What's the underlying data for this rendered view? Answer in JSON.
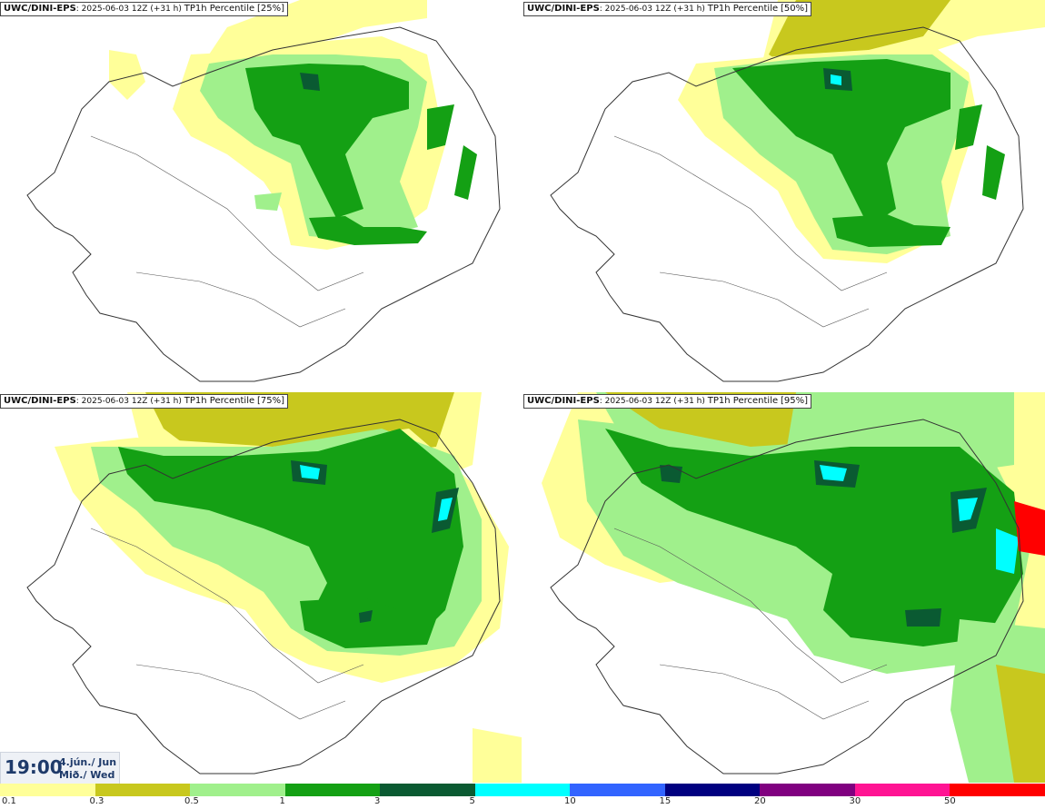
{
  "panels": [
    {
      "source": "UWC/DINI-EPS",
      "run": "2025-06-03 12Z (+31 h)",
      "variable": "TP1h Percentile",
      "percentile": "[25%]"
    },
    {
      "source": "UWC/DINI-EPS",
      "run": "2025-06-03 12Z (+31 h)",
      "variable": "TP1h Percentile",
      "percentile": "[50%]"
    },
    {
      "source": "UWC/DINI-EPS",
      "run": "2025-06-03 12Z (+31 h)",
      "variable": "TP1h Percentile",
      "percentile": "[75%]"
    },
    {
      "source": "UWC/DINI-EPS",
      "run": "2025-06-03 12Z (+31 h)",
      "variable": "TP1h Percentile",
      "percentile": "[95%]"
    }
  ],
  "valid_time": {
    "time": "19:00",
    "date_line1": "4.jún./ Jun",
    "date_line2": "Mið./ Wed"
  },
  "colorbar": {
    "labels": [
      "0.1",
      "0.3",
      "0.5",
      "1",
      "3",
      "5",
      "10",
      "15",
      "20",
      "30",
      "50"
    ],
    "colors": [
      "#ffff99",
      "#c8c81e",
      "#a0f08c",
      "#14a014",
      "#0a5a32",
      "#00ffff",
      "#3264ff",
      "#000080",
      "#800080",
      "#ff1493",
      "#ff0000"
    ]
  },
  "legend_palette": {
    "light_yellow": "#ffff99",
    "olive": "#c8c81e",
    "light_green": "#a0f08c",
    "green": "#14a014",
    "dark_green": "#0a5a32",
    "cyan": "#00ffff"
  }
}
